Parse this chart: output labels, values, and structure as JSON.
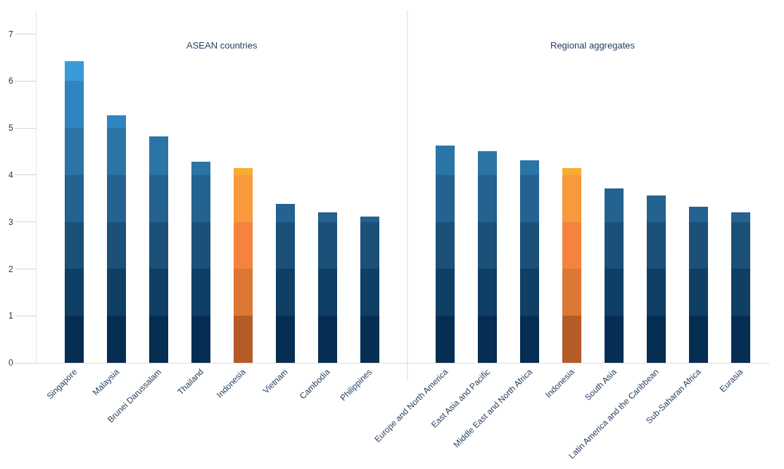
{
  "chart_data": {
    "type": "bar",
    "stacked": true,
    "categories": [
      "Singapore",
      "Malaysia",
      "Brunei Darussalam",
      "Thailand",
      "Indonesia",
      "Vietnam",
      "Cambodia",
      "Philippines",
      "Europe and North America",
      "East Asia and Pacific",
      "Middle East and North Africa",
      "Indonesia",
      "South Asia",
      "Latin America and the Caribbean",
      "Sub-Saharan Africa",
      "Eurasia"
    ],
    "series": [
      {
        "colors": [
          "#062d52",
          "#062d52",
          "#062d52",
          "#062d52",
          "#b35c27",
          "#062d52",
          "#062d52",
          "#062d52",
          "#062d52",
          "#062d52",
          "#062d52",
          "#b35c27",
          "#062d52",
          "#062d52",
          "#062d52",
          "#062d52"
        ],
        "values": [
          1,
          1,
          1,
          1,
          1,
          1,
          1,
          1,
          1,
          1,
          1,
          1,
          1,
          1,
          1,
          1
        ]
      },
      {
        "colors": [
          "#103f66",
          "#103f66",
          "#103f66",
          "#103f66",
          "#dd7735",
          "#103f66",
          "#103f66",
          "#103f66",
          "#103f66",
          "#103f66",
          "#103f66",
          "#dd7735",
          "#103f66",
          "#103f66",
          "#103f66",
          "#103f66"
        ],
        "values": [
          1,
          1,
          1,
          1,
          1,
          1,
          1,
          1,
          1,
          1,
          1,
          1,
          1,
          1,
          1,
          1
        ]
      },
      {
        "colors": [
          "#1b5079",
          "#1b5079",
          "#1b5079",
          "#1b5079",
          "#f5833f",
          "#1b5079",
          "#1b5079",
          "#1b5079",
          "#1b5079",
          "#1b5079",
          "#1b5079",
          "#f5833f",
          "#1b5079",
          "#1b5079",
          "#1b5079",
          "#1b5079"
        ],
        "values": [
          1,
          1,
          1,
          1,
          1,
          1,
          1,
          1,
          1,
          1,
          1,
          1,
          1,
          1,
          1,
          1
        ]
      },
      {
        "colors": [
          "#24628f",
          "#24628f",
          "#24628f",
          "#24628f",
          "#f89a3c",
          "#24628f",
          "#24628f",
          "#24628f",
          "#24628f",
          "#24628f",
          "#24628f",
          "#f89a3c",
          "#24628f",
          "#24628f",
          "#24628f",
          "#24628f"
        ],
        "values": [
          1,
          1,
          1,
          1,
          1,
          0.39,
          0.21,
          0.12,
          1,
          1,
          1,
          1,
          0.71,
          0.57,
          0.33,
          0.2
        ]
      },
      {
        "colors": [
          "#2b74a6",
          "#2b74a6",
          "#2b74a6",
          "#2b74a6",
          "#f9ab34",
          "#2b74a6",
          "#2b74a6",
          "#2b74a6",
          "#2b74a6",
          "#2b74a6",
          "#2b74a6",
          "#f9ab34",
          "#2b74a6",
          "#2b74a6",
          "#2b74a6",
          "#2b74a6"
        ],
        "values": [
          1,
          1,
          0.82,
          0.28,
          0.15,
          null,
          null,
          null,
          0.63,
          0.5,
          0.31,
          0.14,
          null,
          null,
          null,
          null
        ]
      },
      {
        "colors": [
          "#3085c0",
          "#3085c0",
          null,
          null,
          null,
          null,
          null,
          null,
          null,
          null,
          null,
          null,
          null,
          null,
          null,
          null
        ],
        "values": [
          1,
          0.27,
          null,
          null,
          null,
          null,
          null,
          null,
          null,
          null,
          null,
          null,
          null,
          null,
          null,
          null
        ]
      },
      {
        "colors": [
          "#3a9ad6",
          null,
          null,
          null,
          null,
          null,
          null,
          null,
          null,
          null,
          null,
          null,
          null,
          null,
          null,
          null
        ],
        "values": [
          0.42,
          null,
          null,
          null,
          null,
          null,
          null,
          null,
          null,
          null,
          null,
          null,
          null,
          null,
          null,
          null
        ]
      }
    ],
    "ylim": [
      0,
      7.5
    ],
    "yticks": [
      0,
      1,
      2,
      3,
      4,
      5,
      6,
      7
    ],
    "annotations": [
      "ASEAN countries",
      "Regional aggregates"
    ]
  }
}
